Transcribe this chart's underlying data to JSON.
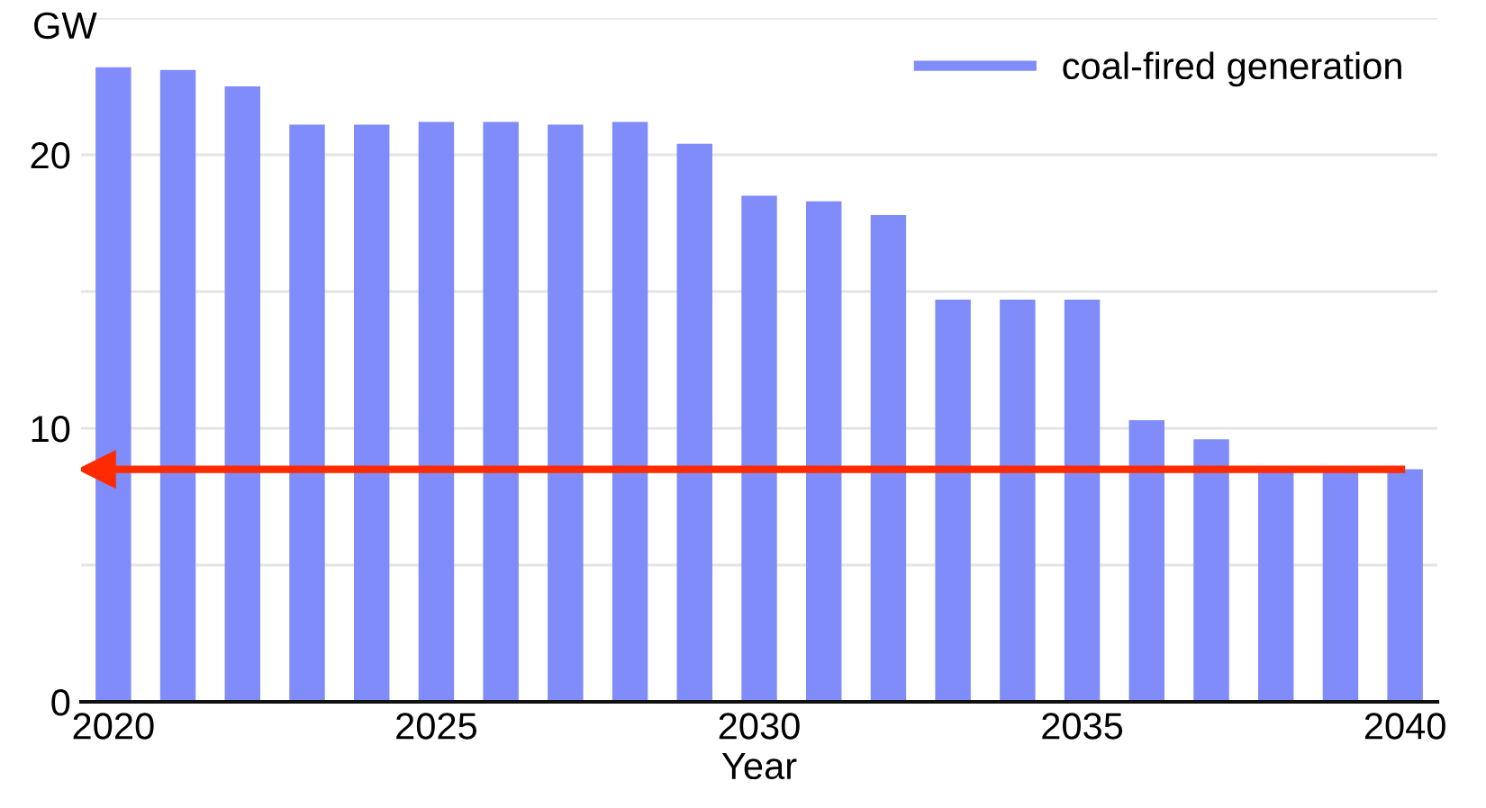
{
  "chart_data": {
    "type": "bar",
    "xlabel": "Year",
    "ylabel": "GW",
    "x": [
      2020,
      2021,
      2022,
      2023,
      2024,
      2025,
      2026,
      2027,
      2028,
      2029,
      2030,
      2031,
      2032,
      2033,
      2034,
      2035,
      2036,
      2037,
      2038,
      2039,
      2040
    ],
    "series": [
      {
        "name": "coal-fired generation",
        "color": "#7f8cfa",
        "values": [
          23.2,
          23.1,
          22.5,
          21.1,
          21.1,
          21.2,
          21.2,
          21.1,
          21.2,
          20.4,
          18.5,
          18.3,
          17.8,
          14.7,
          14.7,
          14.7,
          10.3,
          9.6,
          8.5,
          8.5,
          8.5
        ]
      }
    ],
    "xlim": [
      2019.5,
      2040.5
    ],
    "xticks": [
      2020,
      2025,
      2030,
      2035,
      2040
    ],
    "ylim": [
      0,
      25
    ],
    "yticks": [
      0,
      {
        "value": 5,
        "label": null
      },
      10,
      {
        "value": 15,
        "label": null
      },
      20,
      {
        "value": 25,
        "label": null
      }
    ],
    "grid": "y",
    "legend": "top right",
    "ref_lines": [
      {
        "axis": "y",
        "value": 8.5,
        "color": "#ff2a00"
      }
    ]
  }
}
